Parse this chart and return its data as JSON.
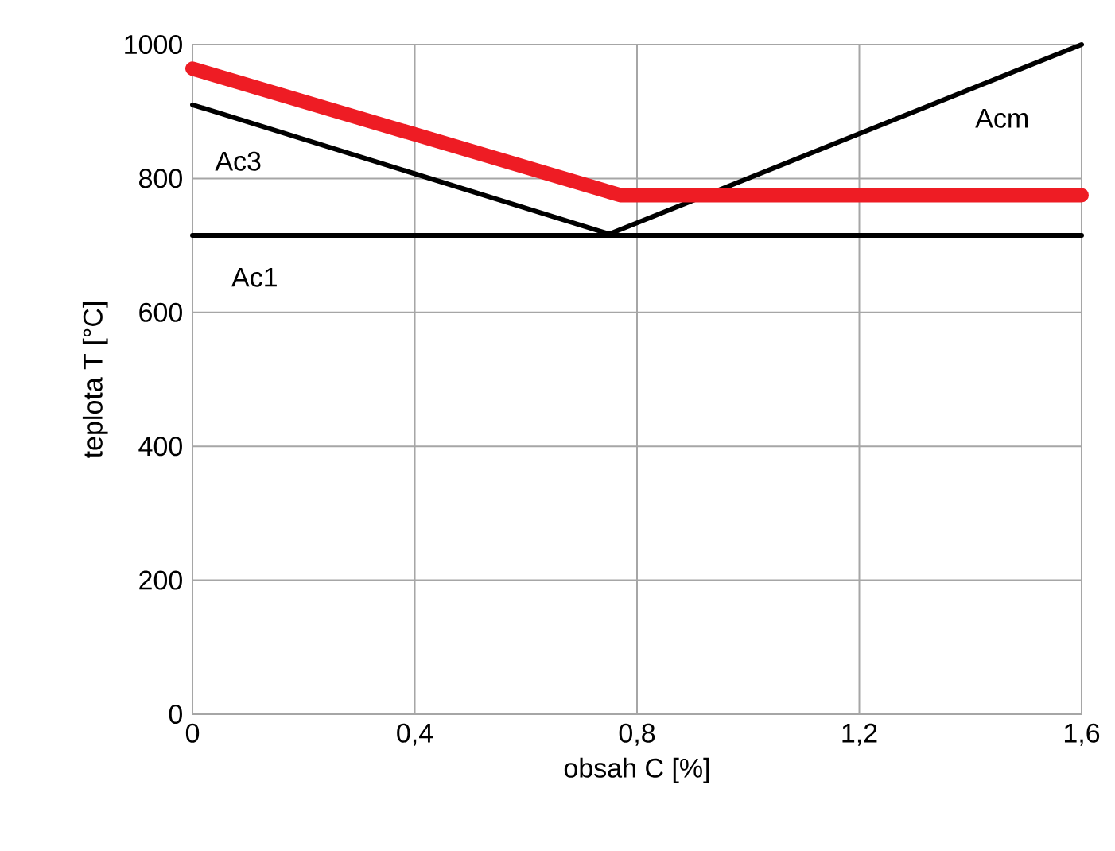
{
  "chart_data": {
    "type": "line",
    "xlabel": "obsah C [%]",
    "ylabel": "teplota T [°C]",
    "xlim": [
      0,
      1.6
    ],
    "ylim": [
      0,
      1000
    ],
    "grid": true,
    "marker": "none",
    "xticks": [
      0,
      {
        "value": 0.4,
        "label": "0,4"
      },
      {
        "value": 0.8,
        "label": "0,8"
      },
      {
        "value": 1.2,
        "label": "1,2"
      },
      {
        "value": 1.6,
        "label": "1,6"
      }
    ],
    "yticks": [
      0,
      200,
      400,
      600,
      800,
      1000
    ],
    "series": [
      {
        "name": "Ac3",
        "color": "#000000",
        "x": [
          0,
          0.75
        ],
        "values": [
          910,
          717
        ]
      },
      {
        "name": "Acm",
        "color": "#000000",
        "x": [
          0.75,
          1.6
        ],
        "values": [
          717,
          1000
        ]
      },
      {
        "name": "Ac1",
        "color": "#000000",
        "x": [
          0,
          1.6
        ],
        "values": [
          715,
          715
        ]
      },
      {
        "color": "#ee1c24",
        "x": [
          0,
          0.77,
          1.6
        ],
        "values": [
          964,
          775,
          775
        ]
      }
    ]
  }
}
